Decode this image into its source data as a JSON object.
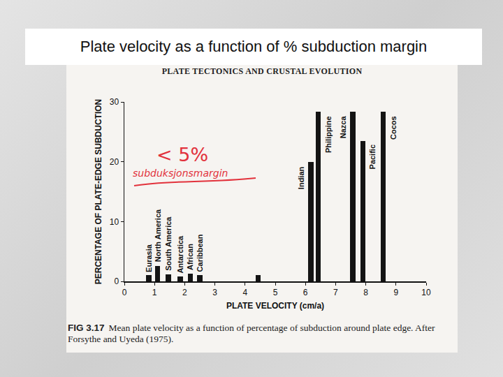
{
  "slide_title": "Plate velocity as a function of % subduction margin",
  "book_header": "PLATE TECTONICS AND CRUSTAL EVOLUTION",
  "caption": {
    "label": "FIG 3.17",
    "text": "Mean plate velocity as a function of percentage of subduction around plate edge. After Forsythe and Uyeda (1975)."
  },
  "handwritten_notes": [
    "< 5%",
    "subduksjonsmargin"
  ],
  "chart_data": {
    "type": "bar",
    "x": [
      0.81,
      1.1,
      1.46,
      1.85,
      2.18,
      2.5,
      4.44,
      6.18,
      6.43,
      7.57,
      7.9,
      8.57
    ],
    "values": [
      1,
      2.6,
      1.2,
      0.8,
      1.3,
      1,
      1,
      20,
      28.4,
      28.4,
      23.5,
      28.4
    ],
    "bar_labels": [
      "Eurasia",
      "North America",
      "South America",
      "Antarctica",
      "African",
      "Caribbean",
      null,
      "Indian",
      "Philippine",
      "Nazca",
      "Pacific",
      "Cocos"
    ],
    "color": "#141414",
    "xlabel": "PLATE VELOCITY (cm/a)",
    "ylabel": "PERCENTAGE OF PLATE-EDGE SUBDUCTION",
    "xlim": [
      0,
      10
    ],
    "ylim": [
      0,
      30
    ],
    "xticks": [
      0,
      1,
      2,
      3,
      4,
      5,
      6,
      7,
      8,
      9,
      10
    ],
    "yticks": [
      0,
      10,
      20,
      30
    ],
    "grid": false
  }
}
